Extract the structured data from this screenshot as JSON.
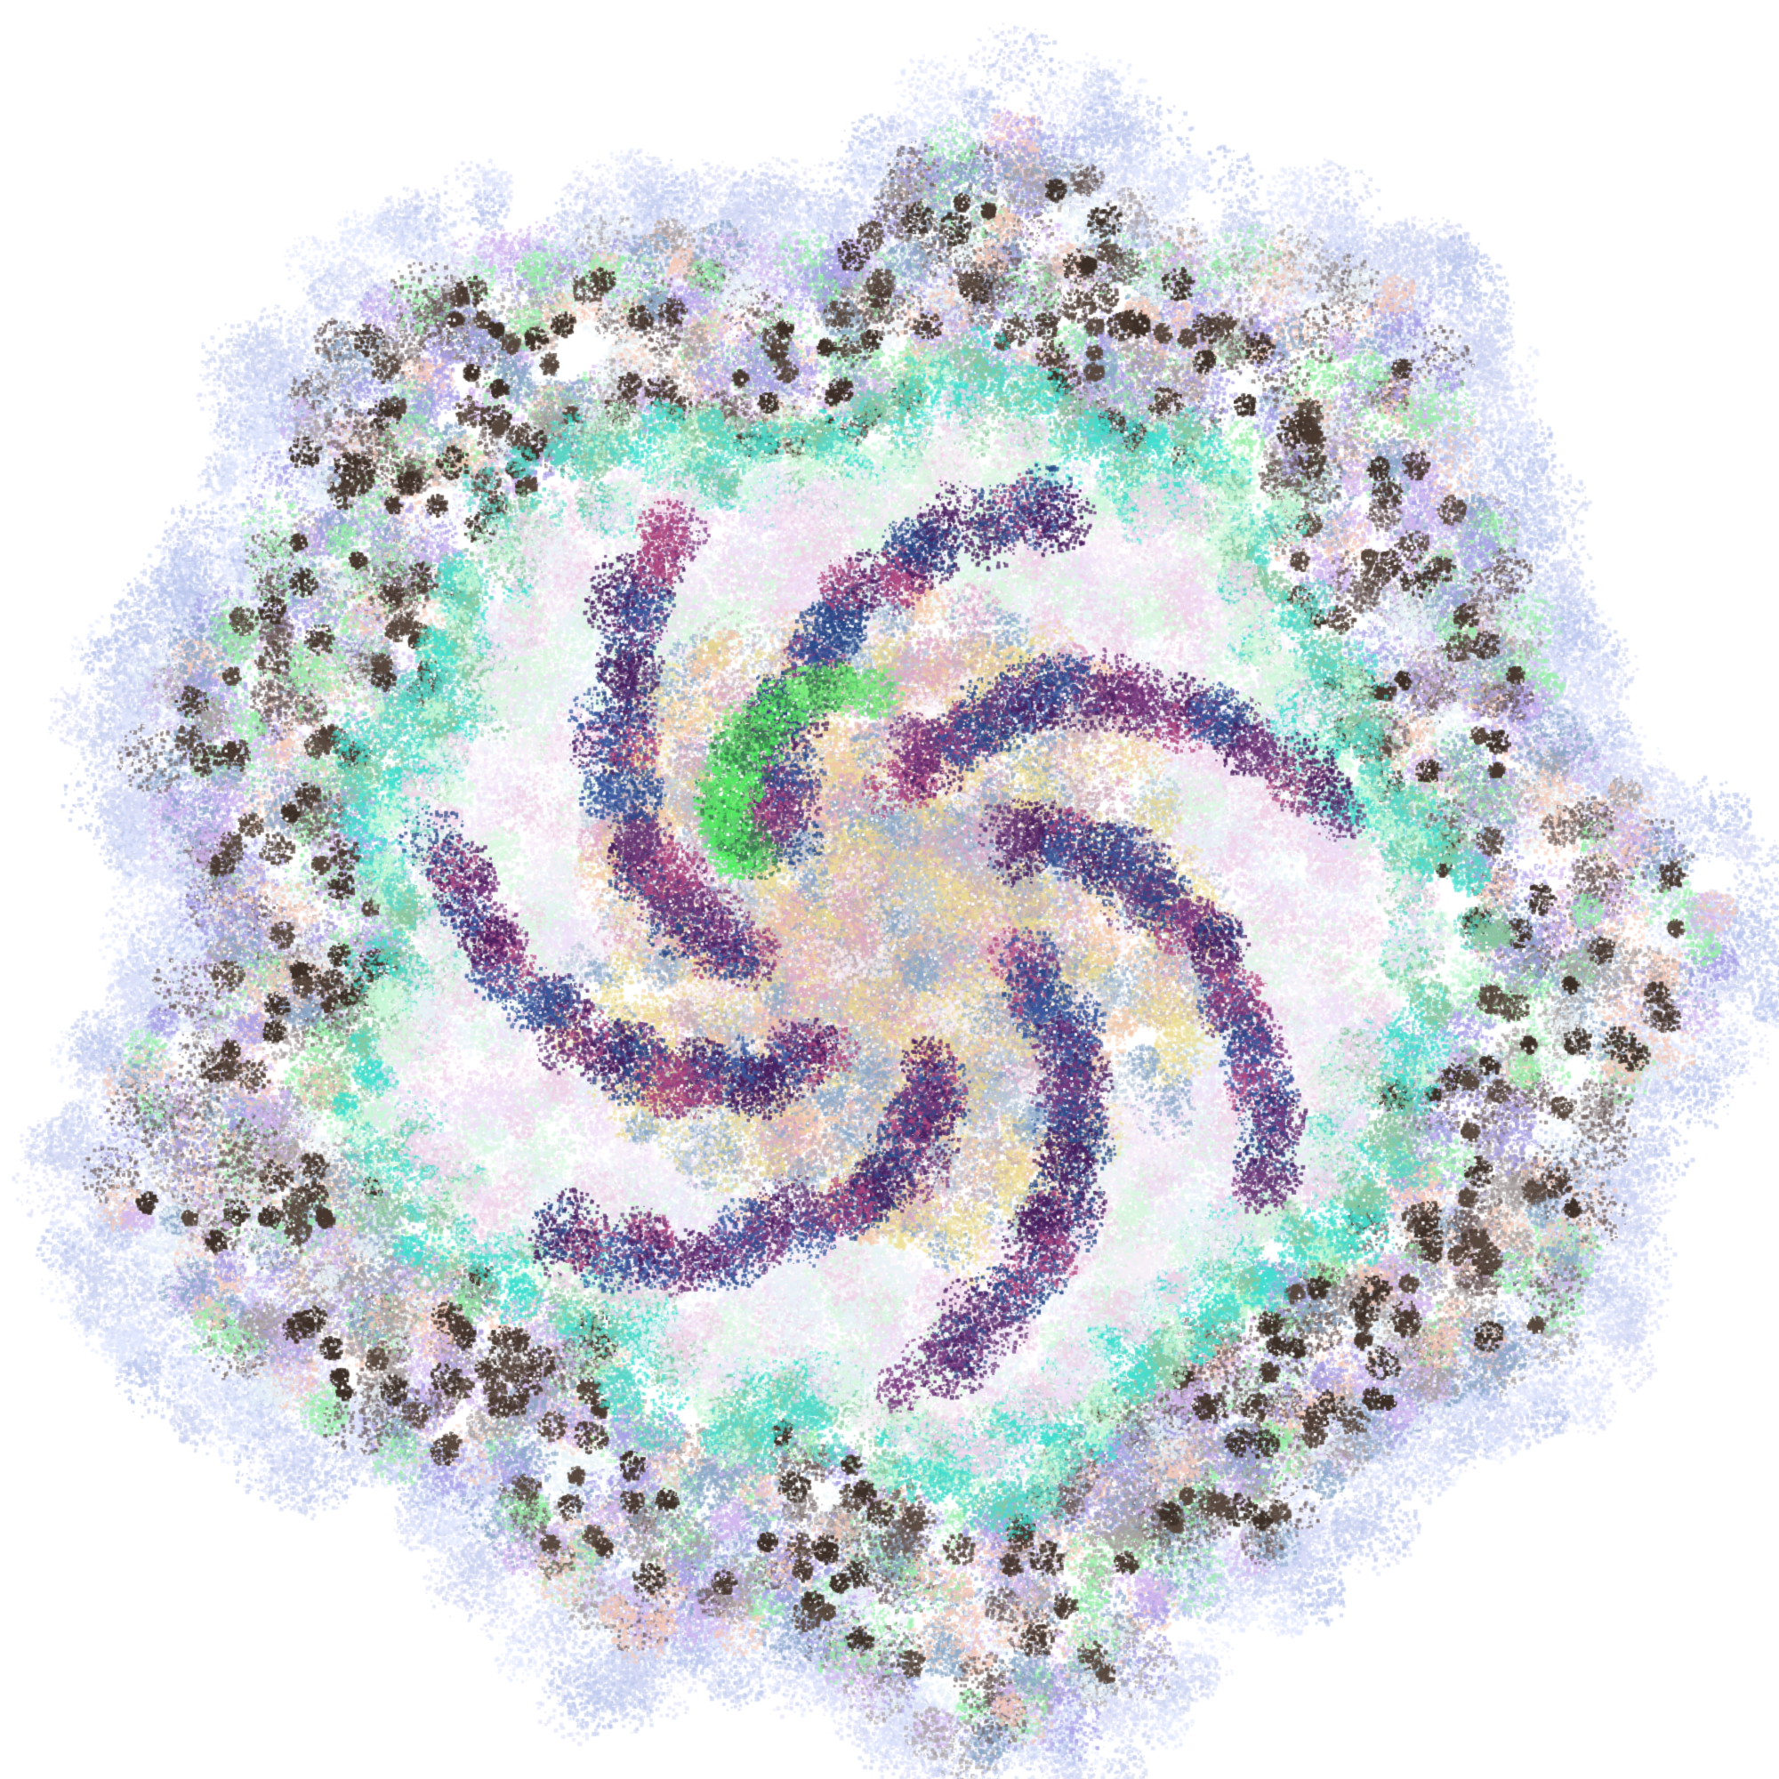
{
  "image": {
    "subject": "generative-cluster-artwork",
    "background_color": "#ffffff",
    "palette": [
      "#c9d2f0",
      "#e8f4f8",
      "#98f0a8",
      "#8cc7a0",
      "#f5c9b8",
      "#f0d2e8",
      "#d4b8f0",
      "#a8a0e8",
      "#8aa8c8",
      "#6c8ca8",
      "#40e0d0",
      "#5ad6c6",
      "#4a3a32",
      "#6a5a58",
      "#a8a0a0",
      "#ffffff",
      "#4a2060",
      "#6a3a78",
      "#2a4888",
      "#3a5aa0",
      "#b04880",
      "#e0a8c8",
      "#f0e098",
      "#e8d890",
      "#f4c8a8",
      "#c8b0b8",
      "#50f060",
      "#80f080",
      "#f8f0f8",
      "#e0e8ff"
    ],
    "rings": [
      {
        "name": "outer-halo",
        "colors": [
          "#c9d2f0",
          "#d8dcf8",
          "#e0e8ff",
          "#b8c4ec"
        ]
      },
      {
        "name": "outer-band",
        "colors": [
          "#98f0a8",
          "#f5c9b8",
          "#d4b8f0",
          "#8aa8c8",
          "#e8f4f8",
          "#a8a0e8",
          "#6a5a58",
          "#a8a0a0"
        ]
      },
      {
        "name": "dark-edge",
        "colors": [
          "#4a3a32",
          "#5a4a40",
          "#3e3028"
        ]
      },
      {
        "name": "teal-rim",
        "colors": [
          "#40e0d0",
          "#5ad6c6",
          "#8cc7a0",
          "#c8f8d8"
        ]
      },
      {
        "name": "mid-band",
        "colors": [
          "#f0d2e8",
          "#e8f4f8",
          "#f8f0f8",
          "#d8f8e0",
          "#f0e0f8"
        ]
      },
      {
        "name": "purple-arms",
        "colors": [
          "#4a2060",
          "#6a3a78",
          "#2a4888",
          "#3a5aa0",
          "#b04880",
          "#7a3a80"
        ]
      },
      {
        "name": "inner-core",
        "colors": [
          "#f0e098",
          "#e8d890",
          "#f4c8a8",
          "#c8b0b8",
          "#b8c8d8",
          "#f8f0f8",
          "#e0a8c8",
          "#8aa8c8"
        ]
      },
      {
        "name": "green-arm",
        "colors": [
          "#50f060",
          "#80f080",
          "#3a7a50",
          "#60d070"
        ]
      }
    ]
  }
}
